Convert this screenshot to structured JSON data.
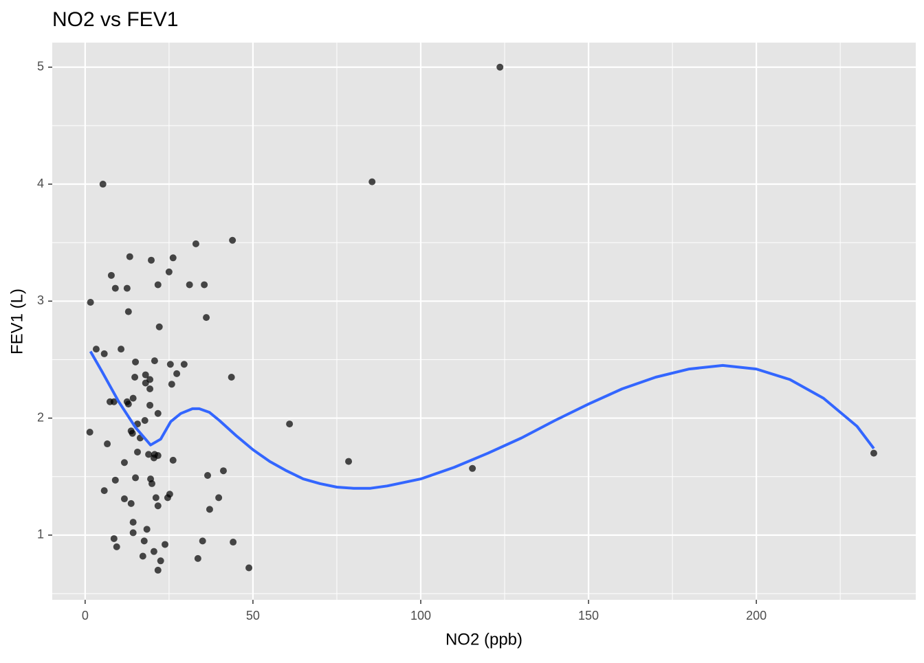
{
  "chart_data": {
    "type": "scatter",
    "title": "NO2 vs FEV1",
    "x_label": "NO2 (ppb)",
    "y_label": "FEV1 (L)",
    "xlim": [
      -9.8,
      247.5
    ],
    "ylim": [
      0.447,
      5.21
    ],
    "xticks": [
      0,
      50,
      100,
      150,
      200
    ],
    "yticks": [
      1,
      2,
      3,
      4,
      5
    ],
    "x_minor_breaks": [
      25,
      75,
      125,
      175,
      225
    ],
    "y_minor_breaks": [
      0.5,
      1.5,
      2.5,
      3.5,
      4.5
    ],
    "grid": true,
    "background": "#e5e5e5",
    "points": {
      "color": "#000000",
      "x": [
        123.6,
        5.3,
        85.5,
        1.6,
        33,
        43.9,
        13.3,
        19.7,
        26.2,
        7.8,
        9.0,
        12.5,
        21.7,
        31.1,
        35.5,
        25.0,
        12.9,
        36.1,
        22.1,
        3.3,
        5.7,
        10.7,
        15.0,
        20.7,
        25.4,
        29.5,
        14.8,
        18.0,
        27.3,
        19.3,
        18.0,
        25.8,
        43.6,
        19.3,
        14.3,
        7.4,
        8.6,
        12.5,
        12.9,
        19.3,
        21.7,
        17.8,
        15.6,
        60.9,
        1.4,
        13.7,
        14.1,
        16.4,
        6.6,
        15.6,
        18.9,
        20.7,
        21.7,
        20.5,
        11.7,
        26.2,
        78.5,
        115.4,
        235,
        41.2,
        36.5,
        15.0,
        19.5,
        9.0,
        19.9,
        5.7,
        24.6,
        25.2,
        21.1,
        39.8,
        11.7,
        13.7,
        21.7,
        37.1,
        14.3,
        18.4,
        14.3,
        8.6,
        17.6,
        35.0,
        23.8,
        44.1,
        9.4,
        20.5,
        17.2,
        33.6,
        22.5,
        21.7,
        48.8
      ],
      "y": [
        5.0,
        4.0,
        4.02,
        2.99,
        3.49,
        3.52,
        3.38,
        3.35,
        3.37,
        3.22,
        3.11,
        3.11,
        3.14,
        3.14,
        3.14,
        3.25,
        2.91,
        2.86,
        2.78,
        2.59,
        2.55,
        2.59,
        2.48,
        2.49,
        2.46,
        2.46,
        2.35,
        2.37,
        2.38,
        2.33,
        2.3,
        2.29,
        2.35,
        2.25,
        2.17,
        2.14,
        2.14,
        2.14,
        2.12,
        2.11,
        2.04,
        1.98,
        1.95,
        1.95,
        1.88,
        1.89,
        1.87,
        1.83,
        1.78,
        1.71,
        1.69,
        1.69,
        1.68,
        1.66,
        1.62,
        1.64,
        1.63,
        1.57,
        1.7,
        1.55,
        1.51,
        1.49,
        1.48,
        1.47,
        1.44,
        1.38,
        1.32,
        1.35,
        1.32,
        1.32,
        1.31,
        1.27,
        1.25,
        1.22,
        1.11,
        1.05,
        1.02,
        0.97,
        0.95,
        0.95,
        0.92,
        0.94,
        0.9,
        0.86,
        0.82,
        0.8,
        0.78,
        0.7,
        0.72
      ]
    },
    "smooth": {
      "color": "#3366ff",
      "x": [
        1.6,
        5,
        10,
        15,
        19.5,
        22.5,
        25.5,
        28.5,
        32,
        34,
        37,
        40,
        45,
        50,
        55,
        60,
        65,
        70,
        75,
        80,
        85,
        90,
        100,
        110,
        120,
        130,
        140,
        150,
        160,
        170,
        180,
        190,
        200,
        210,
        220,
        230,
        235
      ],
      "y": [
        2.57,
        2.4,
        2.14,
        1.92,
        1.77,
        1.82,
        1.97,
        2.04,
        2.08,
        2.08,
        2.05,
        1.98,
        1.85,
        1.73,
        1.63,
        1.55,
        1.48,
        1.44,
        1.41,
        1.4,
        1.4,
        1.42,
        1.48,
        1.58,
        1.7,
        1.83,
        1.98,
        2.12,
        2.25,
        2.35,
        2.42,
        2.45,
        2.42,
        2.33,
        2.17,
        1.93,
        1.74
      ]
    }
  }
}
